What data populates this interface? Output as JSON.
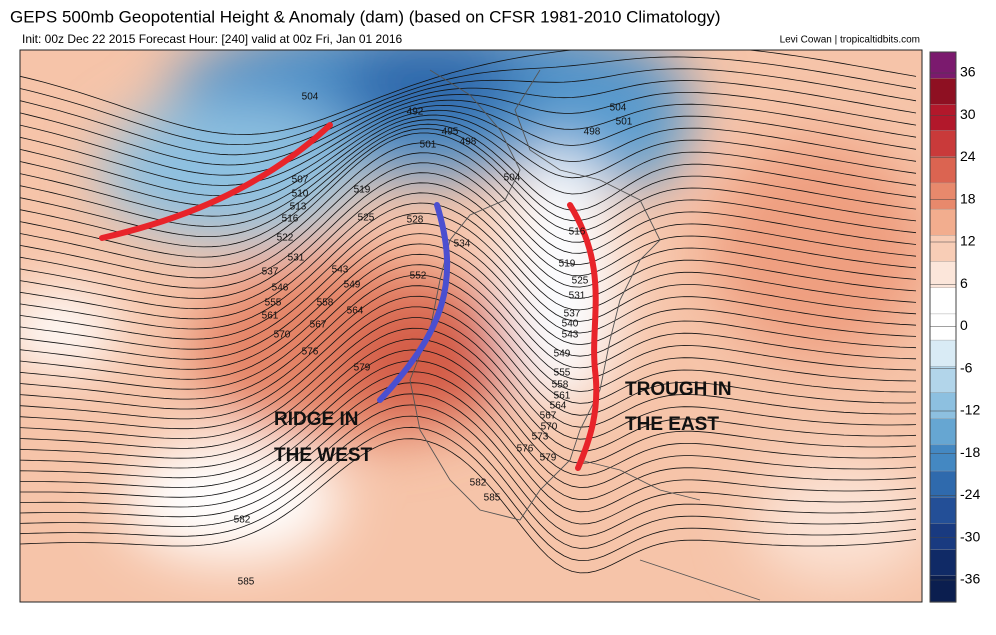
{
  "header": {
    "title": "GEPS 500mb Geopotential Height & Anomaly (dam) (based on CFSR 1981-2010 Climatology)",
    "subtitle": "Init: 00z Dec 22 2015   Forecast Hour: [240]   valid at 00z Fri, Jan 01 2016",
    "credit": "Levi Cowan | tropicaltidbits.com"
  },
  "colorbar": {
    "ticks": [
      36,
      30,
      24,
      18,
      12,
      6,
      0,
      -6,
      -12,
      -18,
      -24,
      -30,
      -36
    ],
    "colors": [
      "#7b1a6e",
      "#8e1022",
      "#b2182b",
      "#c93a3a",
      "#db6451",
      "#e8896c",
      "#f2ad8e",
      "#f8cdb6",
      "#fce6da",
      "#ffffff",
      "#ffffff",
      "#d9ebf5",
      "#b2d5ea",
      "#8dc0e0",
      "#66a6d2",
      "#4488c2",
      "#2f6aad",
      "#234f97",
      "#193a80",
      "#102a66",
      "#0b1e4f"
    ]
  },
  "contour_labels": [
    "504",
    "492",
    "495",
    "498",
    "501",
    "507",
    "510",
    "513",
    "516",
    "519",
    "525",
    "528",
    "522",
    "531",
    "534",
    "537",
    "543",
    "549",
    "546",
    "552",
    "555",
    "558",
    "561",
    "564",
    "567",
    "570",
    "576",
    "579",
    "582",
    "585",
    "582",
    "585",
    "504",
    "501",
    "498",
    "504",
    "516",
    "519",
    "525",
    "531",
    "537",
    "540",
    "543",
    "549",
    "555",
    "558",
    "561",
    "564",
    "567",
    "570",
    "573",
    "576",
    "579"
  ],
  "annotations": {
    "ridge": [
      "RIDGE IN",
      "THE WEST"
    ],
    "trough": [
      "TROUGH IN",
      "THE EAST"
    ]
  }
}
